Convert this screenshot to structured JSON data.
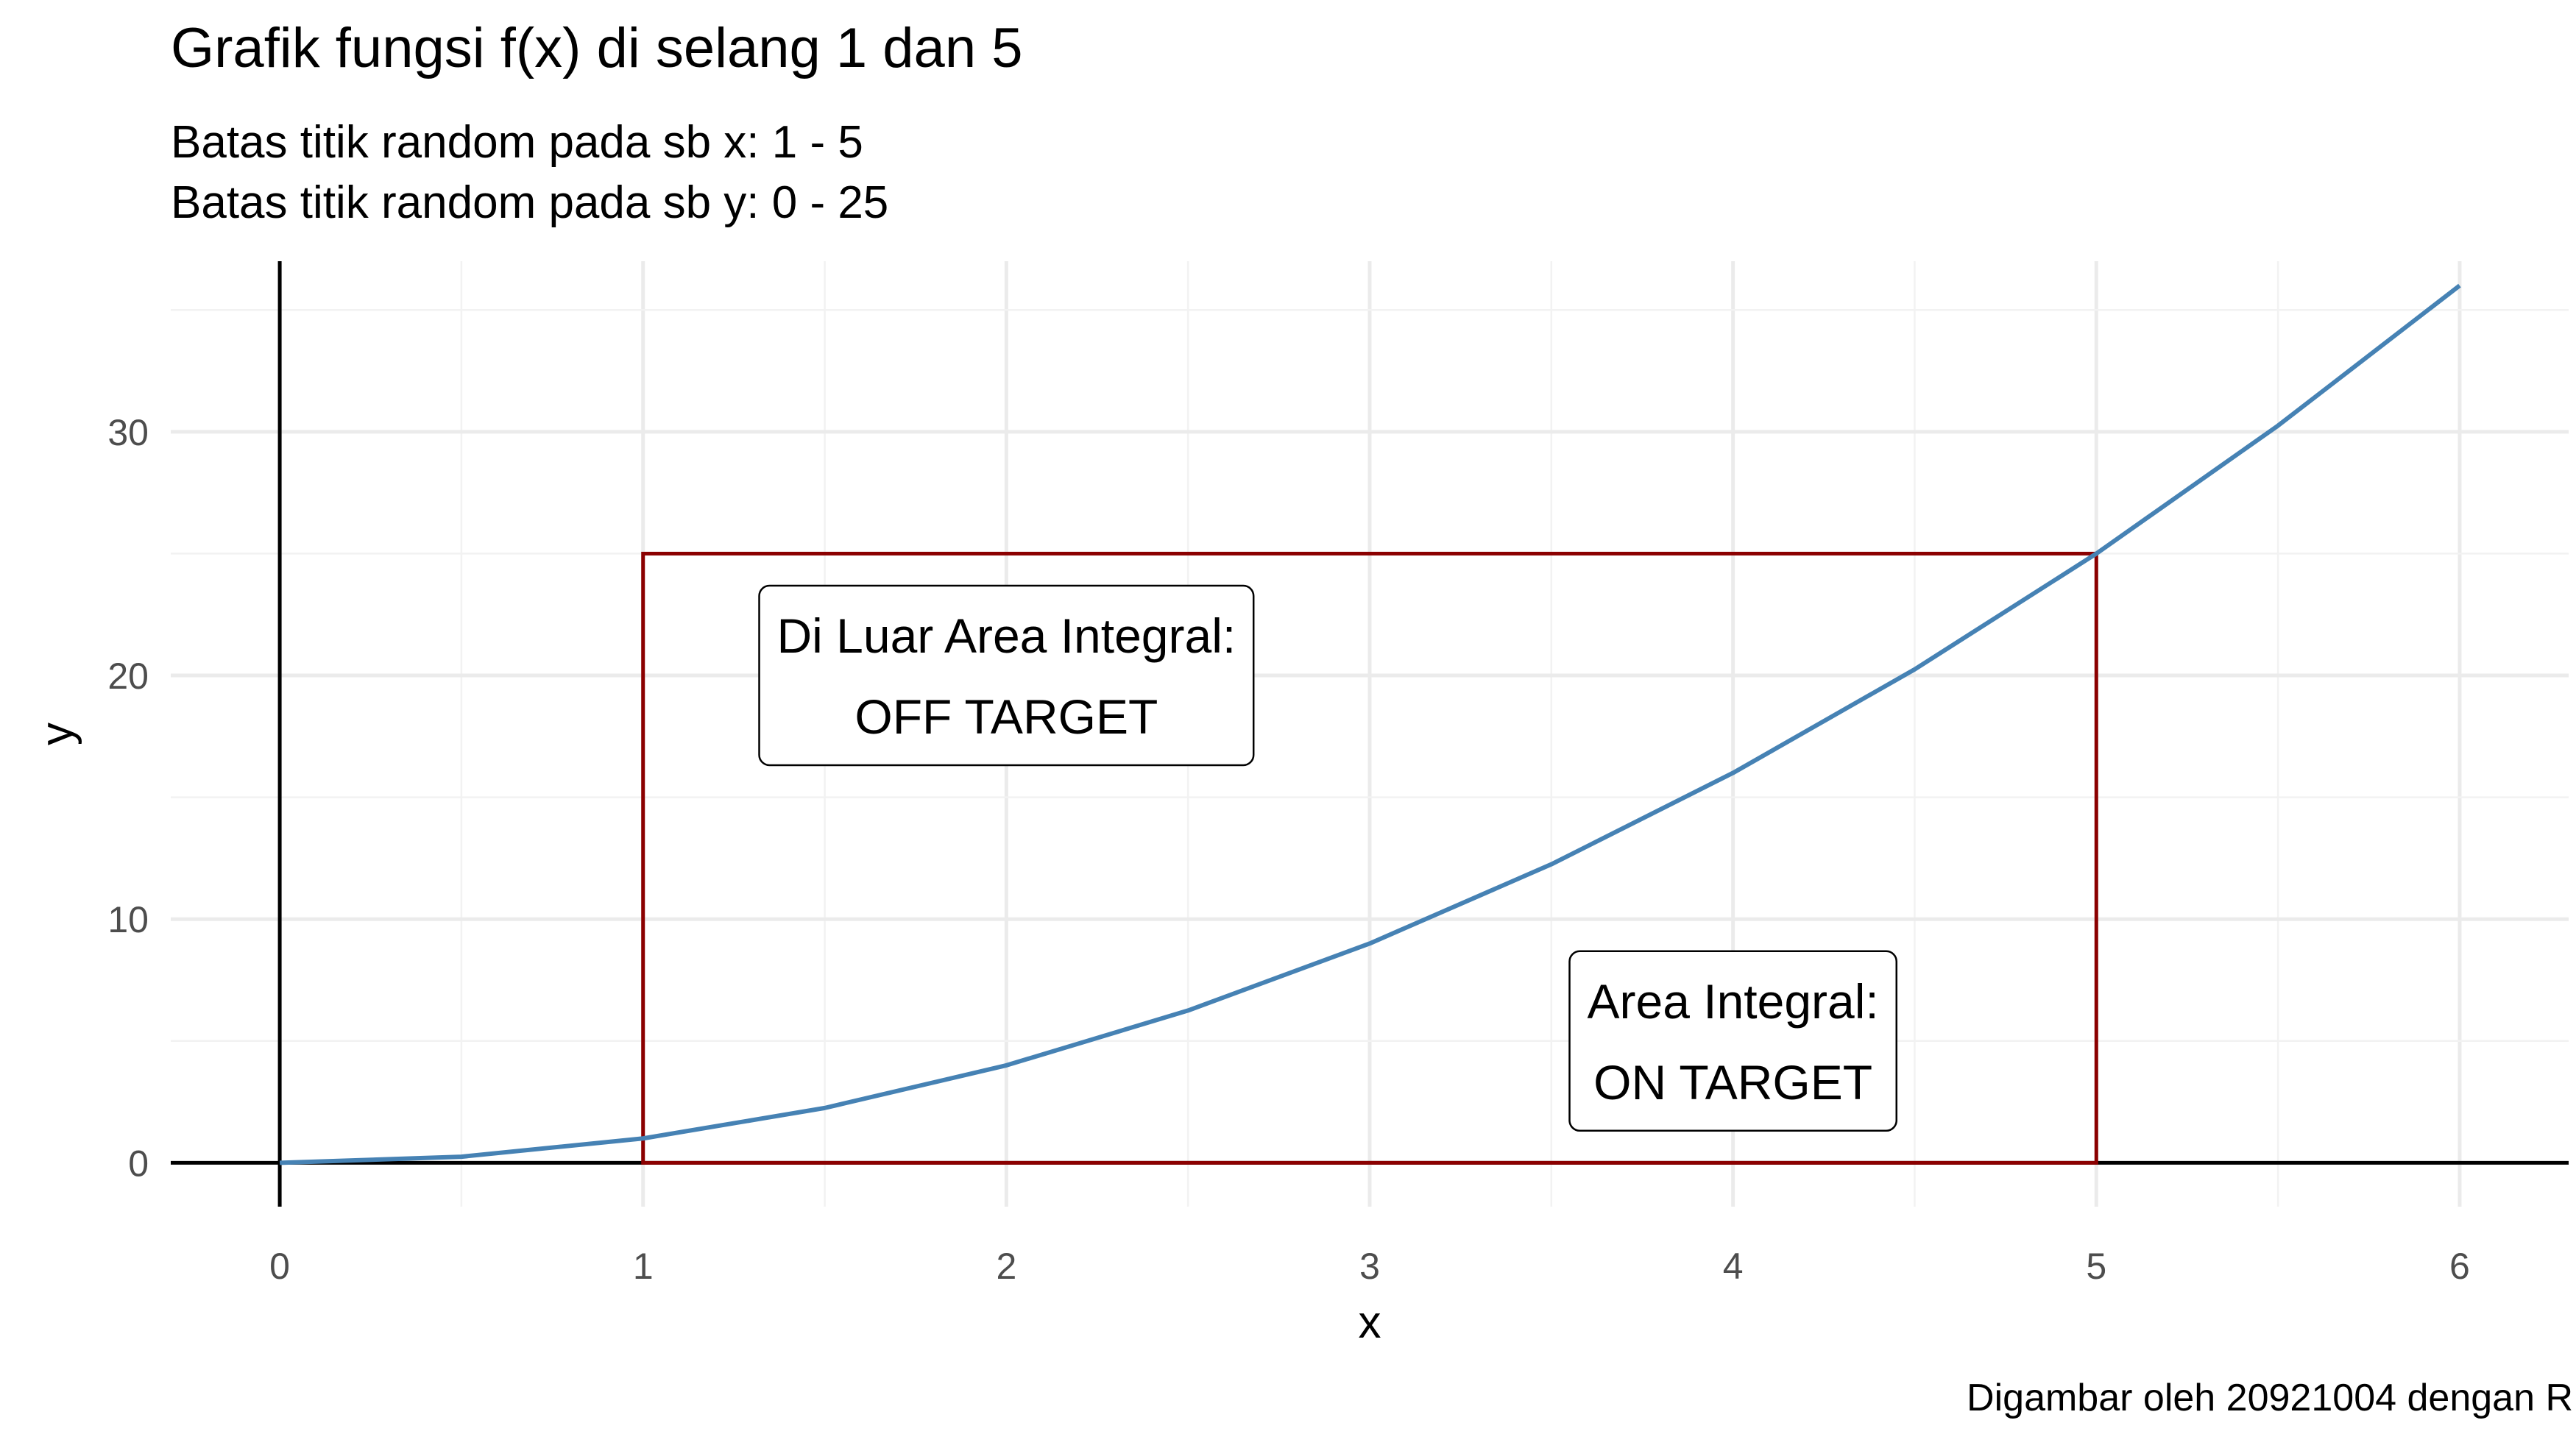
{
  "chart_data": {
    "type": "line",
    "title": "Grafik fungsi f(x) di selang 1 dan 5",
    "subtitle": [
      "Batas titik random pada sb x: 1 - 5",
      "Batas titik random pada sb y: 0 - 25"
    ],
    "caption": "Digambar oleh 20921004 dengan R",
    "xlabel": "x",
    "ylabel": "y",
    "xlim": [
      -0.3,
      6.3
    ],
    "ylim": [
      -1.8,
      37.0
    ],
    "x_ticks": [
      0,
      1,
      2,
      3,
      4,
      5,
      6
    ],
    "y_ticks": [
      0,
      10,
      20,
      30
    ],
    "grid": true,
    "series": [
      {
        "function": "x^2",
        "color": "#4682B4",
        "x": [
          0,
          0.5,
          1,
          1.5,
          2,
          2.5,
          3,
          3.5,
          4,
          4.5,
          5,
          5.5,
          6
        ],
        "y": [
          0,
          0.25,
          1,
          2.25,
          4,
          6.25,
          9,
          12.25,
          16,
          20.25,
          25,
          30.25,
          36
        ]
      }
    ],
    "rectangle": {
      "xmin": 1,
      "xmax": 5,
      "ymin": 0,
      "ymax": 25,
      "color": "#8B0000"
    },
    "reference_lines": {
      "vertical_x": 0,
      "horizontal_y": 0,
      "color": "#000000"
    },
    "annotations": [
      {
        "lines": [
          "Di Luar Area Integral:",
          "OFF TARGET"
        ],
        "x": 2,
        "y": 20
      },
      {
        "lines": [
          "Area Integral:",
          "ON TARGET"
        ],
        "x": 4,
        "y": 5
      }
    ]
  }
}
